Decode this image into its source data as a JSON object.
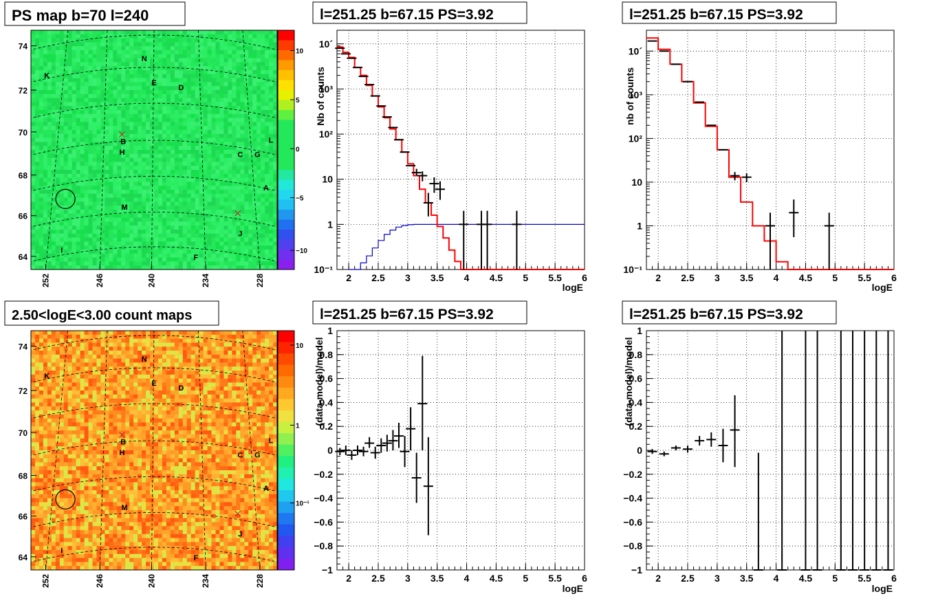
{
  "colors": {
    "frame": "#000000",
    "model_line": "#ff0000",
    "exposure_line": "#0000cc",
    "data_points": "#000000",
    "grid": "#000000",
    "map_green": "#22e85a",
    "map_orange": "#ff9933",
    "source_marker": "#b22222"
  },
  "maps": [
    {
      "title": "PS map b=70 l=240",
      "type": "heatmap",
      "palette": "ps",
      "b_ticks": [
        "74",
        "72",
        "70",
        "68",
        "66",
        "64"
      ],
      "l_ticks": [
        "252",
        "246",
        "240",
        "234",
        "228"
      ],
      "colorbar_ticks": [
        "10",
        "5",
        "0",
        "−5",
        "−10"
      ],
      "colorbar_range": [
        -12,
        12
      ],
      "labels": [
        "N",
        "K",
        "E",
        "D",
        "B",
        "H",
        "C",
        "G",
        "L",
        "A",
        "M",
        "J",
        "I",
        "F"
      ]
    },
    {
      "title": "2.50<logE<3.00 count maps",
      "type": "heatmap",
      "palette": "counts",
      "b_ticks": [
        "74",
        "72",
        "70",
        "68",
        "66",
        "64"
      ],
      "l_ticks": [
        "252",
        "246",
        "240",
        "234",
        "228"
      ],
      "colorbar_ticks": [
        "10",
        "1",
        "10⁻¹"
      ],
      "colorbar_scale": "log",
      "labels": [
        "N",
        "K",
        "E",
        "D",
        "B",
        "H",
        "C",
        "G",
        "L",
        "A",
        "M",
        "J",
        "I",
        "F"
      ]
    }
  ],
  "chart_data": [
    {
      "type": "line",
      "title": "l=251.25 b=67.15 PS=3.92",
      "xlabel": "logE",
      "ylabel": "Nb of counts",
      "xlim": [
        1.8,
        6
      ],
      "ylim": [
        0.1,
        20000
      ],
      "yscale": "log",
      "grid": true,
      "x_ticks": [
        "2",
        "2.5",
        "3",
        "3.5",
        "4",
        "4.5",
        "5",
        "5.5",
        "6"
      ],
      "y_ticks": [
        "10´",
        "10³",
        "10²",
        "10",
        "1",
        "10⁻¹"
      ],
      "model_step": {
        "edges": [
          1.8,
          1.9,
          2.0,
          2.1,
          2.2,
          2.3,
          2.4,
          2.5,
          2.6,
          2.7,
          2.8,
          2.9,
          3.0,
          3.1,
          3.2,
          3.3,
          3.4,
          3.5,
          3.6,
          3.7,
          3.8,
          3.9,
          4.0,
          6.0
        ],
        "values": [
          8500,
          6500,
          5000,
          3000,
          2000,
          1200,
          700,
          400,
          230,
          130,
          75,
          40,
          22,
          12,
          6,
          3,
          1.6,
          0.9,
          0.5,
          0.27,
          0.15,
          0.1,
          0.1
        ]
      },
      "exposure_step": {
        "edges": [
          2.0,
          2.1,
          2.2,
          2.3,
          2.4,
          2.5,
          2.6,
          2.7,
          2.8,
          2.9,
          3.0,
          3.1,
          3.2,
          6.0
        ],
        "values": [
          0.07,
          0.1,
          0.14,
          0.2,
          0.3,
          0.44,
          0.6,
          0.75,
          0.87,
          0.94,
          0.98,
          1.0,
          1.0
        ]
      },
      "points": [
        {
          "x": 1.85,
          "y": 8000,
          "lo": 8000,
          "hi": 8000
        },
        {
          "x": 1.95,
          "y": 6000,
          "lo": 6000,
          "hi": 6000
        },
        {
          "x": 2.05,
          "y": 4800,
          "lo": 4800,
          "hi": 4800
        },
        {
          "x": 2.15,
          "y": 3000,
          "lo": 3000,
          "hi": 3000
        },
        {
          "x": 2.25,
          "y": 1900,
          "lo": 1900,
          "hi": 1900
        },
        {
          "x": 2.35,
          "y": 1250,
          "lo": 1250,
          "hi": 1250
        },
        {
          "x": 2.45,
          "y": 700,
          "lo": 700,
          "hi": 700
        },
        {
          "x": 2.55,
          "y": 420,
          "lo": 420,
          "hi": 420
        },
        {
          "x": 2.65,
          "y": 240,
          "lo": 240,
          "hi": 240
        },
        {
          "x": 2.75,
          "y": 140,
          "lo": 140,
          "hi": 140
        },
        {
          "x": 2.85,
          "y": 75,
          "lo": 75,
          "hi": 75
        },
        {
          "x": 2.95,
          "y": 40,
          "lo": 40,
          "hi": 40
        },
        {
          "x": 3.05,
          "y": 20,
          "lo": 20,
          "hi": 20
        },
        {
          "x": 3.15,
          "y": 14,
          "lo": 12,
          "hi": 17
        },
        {
          "x": 3.25,
          "y": 12,
          "lo": 9,
          "hi": 15
        },
        {
          "x": 3.35,
          "y": 3,
          "lo": 1.5,
          "hi": 5
        },
        {
          "x": 3.45,
          "y": 8,
          "lo": 5,
          "hi": 11
        },
        {
          "x": 3.55,
          "y": 6,
          "lo": 3.5,
          "hi": 9
        },
        {
          "x": 3.95,
          "y": 1,
          "lo": 0.1,
          "hi": 2
        },
        {
          "x": 4.25,
          "y": 1,
          "lo": 0.1,
          "hi": 2
        },
        {
          "x": 4.35,
          "y": 1,
          "lo": 0.1,
          "hi": 2
        },
        {
          "x": 4.85,
          "y": 1,
          "lo": 0.1,
          "hi": 2
        }
      ]
    },
    {
      "type": "line",
      "title": "l=251.25 b=67.15 PS=3.92",
      "xlabel": "logE",
      "ylabel": "nb of counts",
      "xlim": [
        1.8,
        6
      ],
      "ylim": [
        0.1,
        30000
      ],
      "yscale": "log",
      "grid": true,
      "x_ticks": [
        "2",
        "2.5",
        "3",
        "3.5",
        "4",
        "4.5",
        "5",
        "5.5",
        "6"
      ],
      "y_ticks": [
        "10´",
        "10³",
        "10²",
        "10",
        "1",
        "10⁻¹"
      ],
      "model_step": {
        "edges": [
          1.8,
          2.0,
          2.2,
          2.4,
          2.6,
          2.8,
          3.0,
          3.2,
          3.4,
          3.6,
          3.8,
          4.0,
          4.2,
          6.0
        ],
        "values": [
          20000,
          11000,
          5000,
          2000,
          650,
          190,
          55,
          13,
          3.5,
          1.0,
          0.45,
          0.15,
          0.1
        ]
      },
      "points": [
        {
          "x": 1.9,
          "y": 17000,
          "lo": 17000,
          "hi": 17000
        },
        {
          "x": 2.1,
          "y": 10000,
          "lo": 10000,
          "hi": 10000
        },
        {
          "x": 2.3,
          "y": 5000,
          "lo": 5000,
          "hi": 5000
        },
        {
          "x": 2.5,
          "y": 2000,
          "lo": 2000,
          "hi": 2000
        },
        {
          "x": 2.7,
          "y": 680,
          "lo": 680,
          "hi": 680
        },
        {
          "x": 2.9,
          "y": 200,
          "lo": 200,
          "hi": 200
        },
        {
          "x": 3.1,
          "y": 55,
          "lo": 55,
          "hi": 55
        },
        {
          "x": 3.3,
          "y": 14,
          "lo": 11,
          "hi": 17
        },
        {
          "x": 3.5,
          "y": 13,
          "lo": 10,
          "hi": 16
        },
        {
          "x": 3.9,
          "y": 1,
          "lo": 0.1,
          "hi": 2
        },
        {
          "x": 4.3,
          "y": 2,
          "lo": 0.55,
          "hi": 4
        },
        {
          "x": 4.9,
          "y": 1,
          "lo": 0.1,
          "hi": 2
        }
      ]
    },
    {
      "type": "scatter",
      "title": "l=251.25 b=67.15 PS=3.92",
      "xlabel": "logE",
      "ylabel": "(data-model)/model",
      "xlim": [
        1.8,
        6
      ],
      "ylim": [
        -1,
        1
      ],
      "grid": true,
      "x_ticks": [
        "2",
        "2.5",
        "3",
        "3.5",
        "4",
        "4.5",
        "5",
        "5.5",
        "6"
      ],
      "y_ticks": [
        "1",
        "0.8",
        "0.6",
        "0.4",
        "0.2",
        "0",
        "−0.2",
        "−0.4",
        "−0.6",
        "−0.8",
        "−1"
      ],
      "points": [
        {
          "x": 1.85,
          "y": -0.01,
          "lo": -0.04,
          "hi": 0.02
        },
        {
          "x": 1.95,
          "y": 0.0,
          "lo": -0.04,
          "hi": 0.04
        },
        {
          "x": 2.05,
          "y": -0.04,
          "lo": -0.08,
          "hi": 0.0
        },
        {
          "x": 2.15,
          "y": 0.0,
          "lo": -0.04,
          "hi": 0.04
        },
        {
          "x": 2.25,
          "y": -0.01,
          "lo": -0.05,
          "hi": 0.03
        },
        {
          "x": 2.35,
          "y": 0.06,
          "lo": 0.02,
          "hi": 0.11
        },
        {
          "x": 2.45,
          "y": -0.02,
          "lo": -0.07,
          "hi": 0.03
        },
        {
          "x": 2.55,
          "y": 0.04,
          "lo": -0.02,
          "hi": 0.1
        },
        {
          "x": 2.65,
          "y": 0.06,
          "lo": -0.01,
          "hi": 0.13
        },
        {
          "x": 2.75,
          "y": 0.08,
          "lo": 0.0,
          "hi": 0.17
        },
        {
          "x": 2.85,
          "y": 0.12,
          "lo": 0.02,
          "hi": 0.23
        },
        {
          "x": 2.95,
          "y": -0.01,
          "lo": -0.14,
          "hi": 0.12
        },
        {
          "x": 3.05,
          "y": 0.18,
          "lo": 0.0,
          "hi": 0.36
        },
        {
          "x": 3.15,
          "y": -0.23,
          "lo": -0.44,
          "hi": -0.02
        },
        {
          "x": 3.25,
          "y": 0.39,
          "lo": 0.0,
          "hi": 0.79
        },
        {
          "x": 3.35,
          "y": -0.3,
          "lo": -0.71,
          "hi": 0.11
        }
      ]
    },
    {
      "type": "scatter",
      "title": "l=251.25 b=67.15 PS=3.92",
      "xlabel": "logE",
      "ylabel": "(data-model)/model",
      "xlim": [
        1.8,
        6
      ],
      "ylim": [
        -1,
        1
      ],
      "grid": true,
      "x_ticks": [
        "2",
        "2.5",
        "3",
        "3.5",
        "4",
        "4.5",
        "5",
        "5.5",
        "6"
      ],
      "y_ticks": [
        "1",
        "0.8",
        "0.6",
        "0.4",
        "0.2",
        "0",
        "−0.2",
        "−0.4",
        "−0.6",
        "−0.8",
        "−1"
      ],
      "points": [
        {
          "x": 1.9,
          "y": -0.01,
          "lo": -0.03,
          "hi": 0.01
        },
        {
          "x": 2.1,
          "y": -0.03,
          "lo": -0.05,
          "hi": -0.01
        },
        {
          "x": 2.3,
          "y": 0.02,
          "lo": 0.0,
          "hi": 0.04
        },
        {
          "x": 2.5,
          "y": 0.01,
          "lo": -0.02,
          "hi": 0.04
        },
        {
          "x": 2.7,
          "y": 0.08,
          "lo": 0.04,
          "hi": 0.12
        },
        {
          "x": 2.9,
          "y": 0.09,
          "lo": 0.03,
          "hi": 0.15
        },
        {
          "x": 3.1,
          "y": 0.04,
          "lo": -0.1,
          "hi": 0.18
        },
        {
          "x": 3.3,
          "y": 0.17,
          "lo": -0.14,
          "hi": 0.46
        },
        {
          "x": 3.7,
          "y": -1.0,
          "lo": -1.0,
          "hi": -0.02
        },
        {
          "x": 4.1,
          "y": -1.0,
          "lo": -1.0,
          "hi": 1.0
        },
        {
          "x": 4.5,
          "y": -1.0,
          "lo": -1.0,
          "hi": 1.0
        },
        {
          "x": 4.7,
          "y": -1.0,
          "lo": -1.0,
          "hi": 1.0
        },
        {
          "x": 5.1,
          "y": -1.0,
          "lo": -1.0,
          "hi": 1.0
        },
        {
          "x": 5.3,
          "y": -1.0,
          "lo": -1.0,
          "hi": 1.0
        },
        {
          "x": 5.5,
          "y": -1.0,
          "lo": -1.0,
          "hi": 1.0
        },
        {
          "x": 5.7,
          "y": -1.0,
          "lo": -1.0,
          "hi": 1.0
        },
        {
          "x": 5.9,
          "y": -1.0,
          "lo": -1.0,
          "hi": 1.0
        }
      ]
    }
  ]
}
